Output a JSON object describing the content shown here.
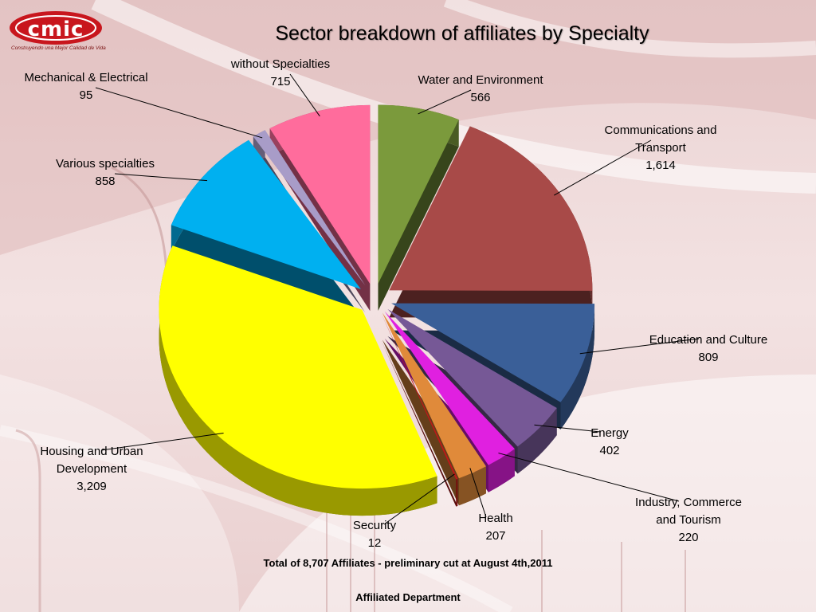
{
  "header": {
    "logo_text": "cmic",
    "logo_tagline": "Construyendo una Mejor Calidad de Vida"
  },
  "footer": {
    "total_note": "Total of 8,707 Affiliates - preliminary cut at August  4th,2011",
    "department": "Affiliated Department"
  },
  "chart_data": {
    "type": "pie",
    "title": "Sector breakdown of affiliates by Specialty",
    "slices": [
      {
        "label": "Water and Environment",
        "value": 566,
        "value_label": "566",
        "color": "#7b9a3c"
      },
      {
        "label": "Communications and Transport",
        "value": 1614,
        "value_label": "1,614",
        "color": "#a84a48"
      },
      {
        "label": "Education and Culture",
        "value": 809,
        "value_label": "809",
        "color": "#3a5f98"
      },
      {
        "label": "Energy",
        "value": 402,
        "value_label": "402",
        "color": "#765896"
      },
      {
        "label": "Industry, Commerce and Tourism",
        "value": 220,
        "value_label": "220",
        "color": "#e020e0"
      },
      {
        "label": "Health",
        "value": 207,
        "value_label": "207",
        "color": "#e08a3a"
      },
      {
        "label": "Security",
        "value": 12,
        "value_label": "12",
        "color": "#c01818"
      },
      {
        "label": "Housing and Urban Development",
        "value": 3209,
        "value_label": "3,209",
        "color": "#ffff00"
      },
      {
        "label": "Various specialties",
        "value": 858,
        "value_label": "858",
        "color": "#00b0f0"
      },
      {
        "label": "Mechanical & Electrical",
        "value": 95,
        "value_label": "95",
        "color": "#a89cc8"
      },
      {
        "label": "without Specialties",
        "value": 715,
        "value_label": "715",
        "color": "#ff6c9c"
      }
    ],
    "legend": "none",
    "start_angle_deg": 0
  }
}
